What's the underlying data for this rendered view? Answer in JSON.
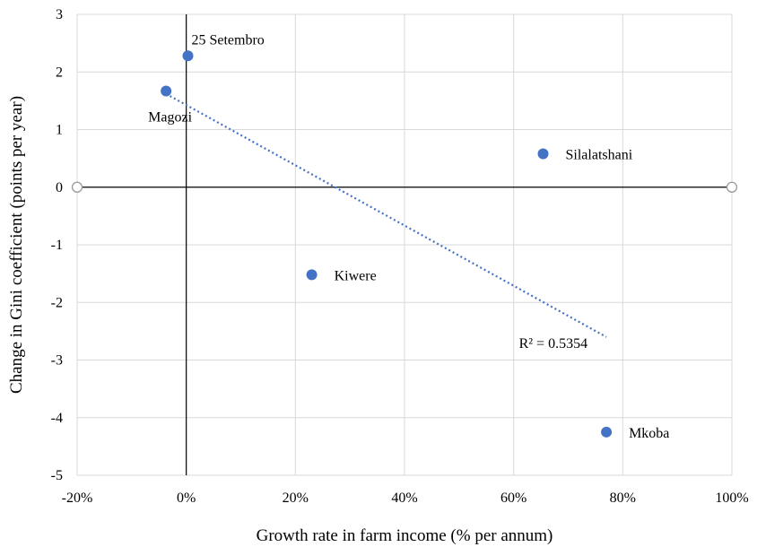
{
  "chart_data": {
    "type": "scatter",
    "title": "",
    "xlabel": "Growth rate in farm income (% per annum)",
    "ylabel": "Change in Gini coefficient (points per year)",
    "xlim": [
      -0.2,
      1.0
    ],
    "ylim": [
      -5,
      3
    ],
    "x_ticks": [
      -0.2,
      0,
      0.2,
      0.4,
      0.6,
      0.8,
      1.0
    ],
    "x_tick_labels": [
      "-20%",
      "0%",
      "20%",
      "40%",
      "60%",
      "80%",
      "100%"
    ],
    "y_ticks": [
      -5,
      -4,
      -3,
      -2,
      -1,
      0,
      1,
      2,
      3
    ],
    "y_tick_labels": [
      "-5",
      "-4",
      "-3",
      "-2",
      "-1",
      "0",
      "1",
      "2",
      "3"
    ],
    "grid": true,
    "legend": "none",
    "points": [
      {
        "label": "25 Setembro",
        "x": 0.003,
        "y": 2.28
      },
      {
        "label": "Magozi",
        "x": -0.037,
        "y": 1.67
      },
      {
        "label": "Silalatshani",
        "x": 0.654,
        "y": 0.58
      },
      {
        "label": "Kiwere",
        "x": 0.23,
        "y": -1.52
      },
      {
        "label": "Mkoba",
        "x": 0.77,
        "y": -4.25
      }
    ],
    "trendline": {
      "type": "linear",
      "from": {
        "x": -0.037,
        "y": 1.62
      },
      "to": {
        "x": 0.77,
        "y": -2.6
      },
      "r2_label": "R² = 0.5354"
    },
    "colors": {
      "points": "#4472C4",
      "trendline": "#4472C4",
      "grid": "#D9D9D9",
      "axes": "#000000"
    }
  }
}
